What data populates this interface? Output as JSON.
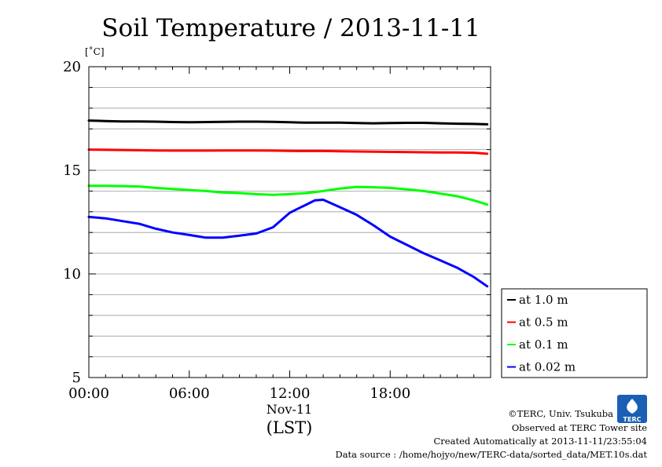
{
  "chart_data": {
    "type": "line",
    "title": "Soil Temperature / 2013-11-11",
    "ylabel": "[˚C]",
    "xlabel": "(LST)",
    "date_label": "Nov-11",
    "xlim": [
      0,
      24
    ],
    "ylim": [
      5,
      20
    ],
    "y_ticks": [
      5,
      10,
      15,
      20
    ],
    "y_tick_labels": [
      "5",
      "10",
      "15",
      "20"
    ],
    "y_minor_step": 1,
    "x_ticks": [
      0,
      6,
      12,
      18
    ],
    "x_tick_labels": [
      "00:00",
      "06:00",
      "12:00",
      "18:00"
    ],
    "grid": true,
    "legend_position": "bottom-right, outside plot",
    "series": [
      {
        "name": "at 1.0 m",
        "color": "#000000",
        "x": [
          0,
          1,
          2,
          3,
          4,
          5,
          6,
          7,
          8,
          9,
          10,
          11,
          12,
          13,
          14,
          15,
          16,
          17,
          18,
          19,
          20,
          21,
          22,
          23,
          23.8
        ],
        "y": [
          17.4,
          17.38,
          17.36,
          17.36,
          17.35,
          17.33,
          17.32,
          17.33,
          17.34,
          17.35,
          17.35,
          17.34,
          17.32,
          17.3,
          17.3,
          17.3,
          17.28,
          17.27,
          17.28,
          17.29,
          17.29,
          17.27,
          17.25,
          17.24,
          17.22
        ]
      },
      {
        "name": "at 0.5 m",
        "color": "#ff0000",
        "x": [
          0,
          1,
          2,
          3,
          4,
          5,
          6,
          7,
          8,
          9,
          10,
          11,
          12,
          13,
          14,
          15,
          16,
          17,
          18,
          19,
          20,
          21,
          22,
          23,
          23.8
        ],
        "y": [
          16.0,
          15.99,
          15.98,
          15.97,
          15.96,
          15.95,
          15.95,
          15.95,
          15.96,
          15.96,
          15.96,
          15.95,
          15.94,
          15.93,
          15.93,
          15.92,
          15.91,
          15.9,
          15.89,
          15.88,
          15.87,
          15.86,
          15.86,
          15.85,
          15.8
        ]
      },
      {
        "name": "at 0.1 m",
        "color": "#00ff00",
        "x": [
          0,
          1,
          2,
          3,
          4,
          5,
          6,
          7,
          8,
          9,
          10,
          11,
          12,
          13,
          14,
          15,
          16,
          17,
          18,
          19,
          20,
          21,
          22,
          23,
          23.8
        ],
        "y": [
          14.25,
          14.25,
          14.24,
          14.22,
          14.15,
          14.1,
          14.05,
          14.0,
          13.93,
          13.9,
          13.85,
          13.82,
          13.85,
          13.9,
          14.0,
          14.12,
          14.2,
          14.18,
          14.15,
          14.08,
          14.0,
          13.88,
          13.75,
          13.55,
          13.35
        ]
      },
      {
        "name": "at 0.02 m",
        "color": "#0000ff",
        "x": [
          0,
          1,
          2,
          3,
          4,
          5,
          6,
          7,
          8,
          9,
          10,
          11,
          12,
          12.5,
          13,
          13.5,
          14,
          15,
          16,
          17,
          18,
          19,
          20,
          21,
          22,
          23,
          23.8
        ],
        "y": [
          12.75,
          12.68,
          12.55,
          12.42,
          12.18,
          12.0,
          11.88,
          11.75,
          11.75,
          11.85,
          11.95,
          12.25,
          12.95,
          13.15,
          13.35,
          13.55,
          13.58,
          13.22,
          12.85,
          12.35,
          11.8,
          11.4,
          11.0,
          10.65,
          10.3,
          9.85,
          9.4
        ]
      }
    ]
  },
  "credits": {
    "copyright": "©TERC, Univ. Tsukuba",
    "observed": "Observed at TERC Tower site",
    "created": "Created Automatically at 2013-11-11/23:55:04",
    "source": "Data source : /home/hojyo/new/TERC-data/sorted_data/MET.10s.dat",
    "logo_text": "TERC",
    "logo_color": "#1a5fb4"
  }
}
